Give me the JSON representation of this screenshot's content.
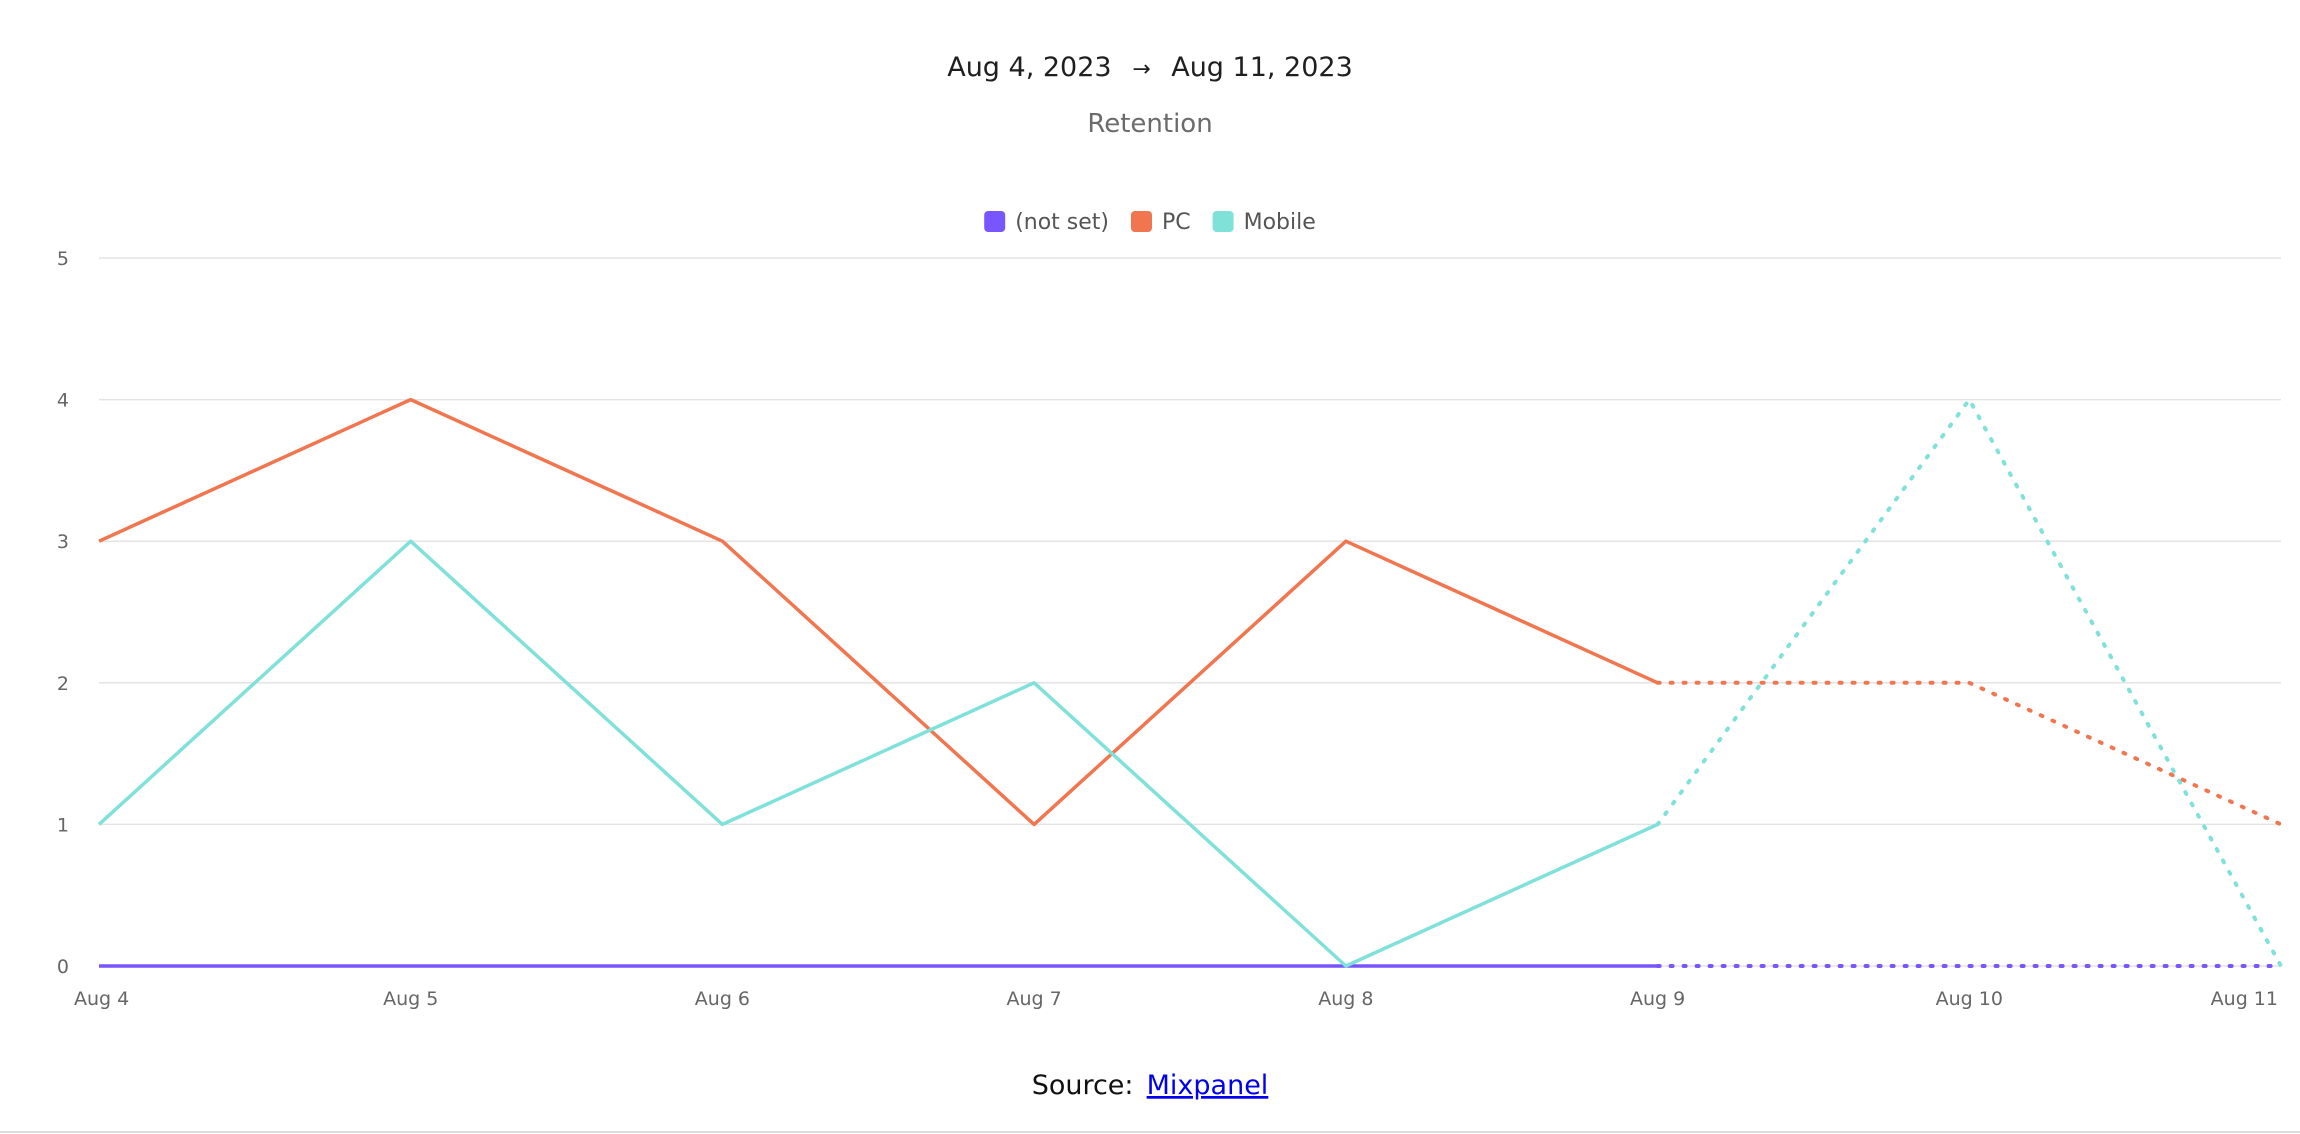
{
  "header": {
    "date_start": "Aug 4, 2023",
    "arrow": "→",
    "date_end": "Aug 11, 2023",
    "subtitle": "Retention"
  },
  "colors": {
    "not_set": "#7856ff",
    "pc": "#f17650",
    "mobile": "#80e1d9",
    "grid": "#e3e3e3",
    "link": "#0000ee"
  },
  "chart_data": {
    "type": "line",
    "title": "",
    "xlabel": "",
    "ylabel": "",
    "categories": [
      "Aug 4",
      "Aug 5",
      "Aug 6",
      "Aug 7",
      "Aug 8",
      "Aug 9",
      "Aug 10",
      "Aug 11"
    ],
    "ylim": [
      0,
      5
    ],
    "yticks": [
      0,
      1,
      2,
      3,
      4,
      5
    ],
    "grid": true,
    "legend_position": "top-center",
    "projected_from_index": 5,
    "series": [
      {
        "name": "(not set)",
        "color": "#7856ff",
        "values": [
          0,
          0,
          0,
          0,
          0,
          0,
          0,
          0
        ]
      },
      {
        "name": "PC",
        "color": "#f17650",
        "values": [
          3,
          4,
          3,
          1,
          3,
          2,
          2,
          1
        ]
      },
      {
        "name": "Mobile",
        "color": "#80e1d9",
        "values": [
          1,
          3,
          1,
          2,
          0,
          1,
          4,
          0
        ]
      }
    ]
  },
  "footer": {
    "source_label": "Source:",
    "source_link": "Mixpanel"
  }
}
